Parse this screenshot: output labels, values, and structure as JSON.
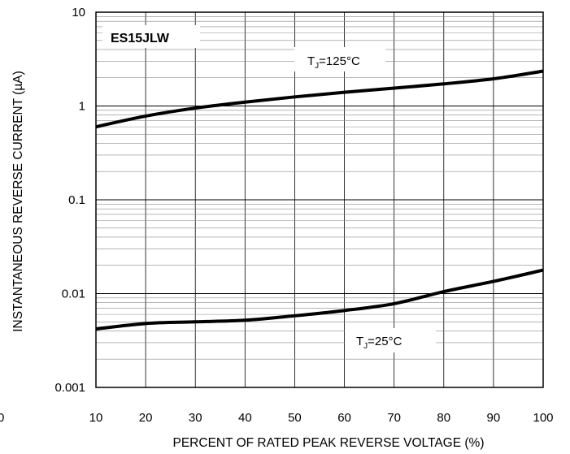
{
  "chart_data": {
    "type": "line",
    "title": "ES15JLW",
    "xlabel": "PERCENT OF RATED PEAK REVERSE VOLTAGE (%)",
    "ylabel": "INSTANTANEOUS REVERSE CURRENT (µA)",
    "x_ticks": [
      "10",
      "20",
      "30",
      "40",
      "50",
      "60",
      "70",
      "80",
      "90",
      "100"
    ],
    "y_ticks": [
      "0.001",
      "0.01",
      "0.1",
      "1",
      "10"
    ],
    "xlim": [
      10,
      100
    ],
    "ylim": [
      0.001,
      10
    ],
    "y_scale": "log",
    "grid": true,
    "x_origin_label": "0",
    "series": [
      {
        "name": "TJ=125°C",
        "label_main": "T",
        "label_sub": "J",
        "label_rest": "=125°C",
        "x": [
          10,
          20,
          30,
          40,
          50,
          60,
          70,
          80,
          90,
          100
        ],
        "y": [
          0.6,
          0.78,
          0.95,
          1.1,
          1.25,
          1.4,
          1.55,
          1.72,
          1.95,
          2.35
        ]
      },
      {
        "name": "TJ=25°C",
        "label_main": "T",
        "label_sub": "J",
        "label_rest": "=25°C",
        "x": [
          10,
          20,
          30,
          40,
          50,
          60,
          70,
          80,
          90,
          100
        ],
        "y": [
          0.0042,
          0.0048,
          0.005,
          0.0052,
          0.0058,
          0.0066,
          0.0078,
          0.0105,
          0.0135,
          0.0178
        ]
      }
    ]
  }
}
